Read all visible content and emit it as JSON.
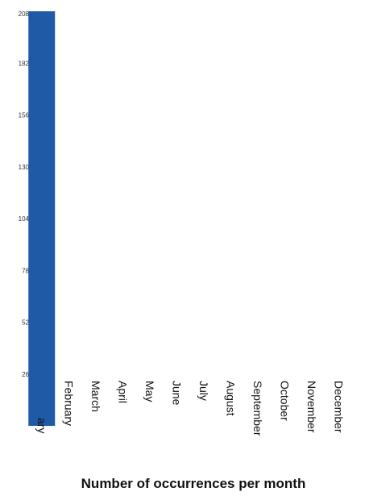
{
  "chart_data": {
    "type": "bar",
    "categories": [
      "January",
      "February",
      "March",
      "April",
      "May",
      "June",
      "July",
      "August",
      "September",
      "October",
      "November",
      "December"
    ],
    "visible_category_labels": [
      "ary",
      "February",
      "March",
      "April",
      "May",
      "June",
      "July",
      "August",
      "September",
      "October",
      "November",
      "December"
    ],
    "values": [
      208,
      0,
      0,
      0,
      0,
      0,
      0,
      0,
      0,
      0,
      0,
      0
    ],
    "yticks": [
      26,
      52,
      78,
      104,
      130,
      156,
      182,
      208
    ],
    "ytick_labels": [
      "26",
      "52",
      "78",
      "104",
      "130",
      "156",
      "182",
      "208"
    ],
    "ylim": [
      0,
      208
    ],
    "title": "",
    "xlabel": "Number of occurrences per month",
    "ylabel": "",
    "grid": false,
    "bar_color": "#1f5aa6"
  }
}
